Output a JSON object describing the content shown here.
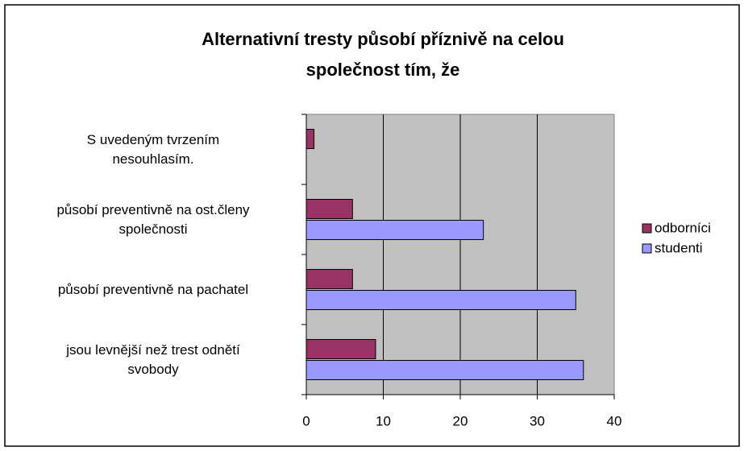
{
  "chart_data": {
    "type": "bar",
    "orientation": "horizontal",
    "title": "Alternativní tresty působí příznivě na celou\nspolečnost tím, že",
    "categories": [
      "S uvedeným tvrzením\nnesouhlasím.",
      "působí preventivně na ost.členy\nspolečnosti",
      "působí preventivně na pachatel",
      "jsou levnější než trest odnětí\nsvobody"
    ],
    "series": [
      {
        "name": "odborníci",
        "color": "#993366",
        "values": [
          1,
          6,
          6,
          9
        ]
      },
      {
        "name": "studenti",
        "color": "#9999ff",
        "values": [
          0,
          23,
          35,
          36
        ]
      }
    ],
    "xlim": [
      0,
      40
    ],
    "xticks": [
      0,
      10,
      20,
      30,
      40
    ],
    "grid": true,
    "legend": "right"
  }
}
